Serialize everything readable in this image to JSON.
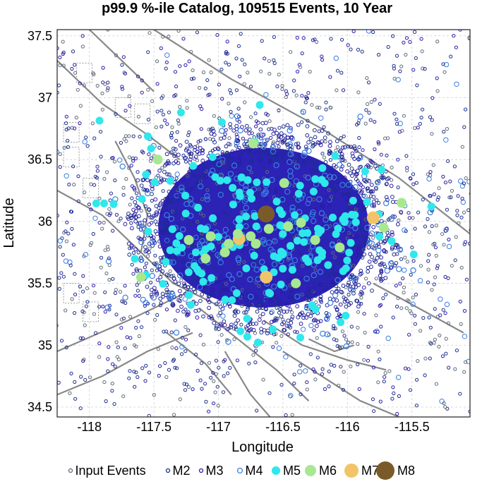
{
  "chart_data": {
    "type": "scatter",
    "title": "p99.9 %-ile Catalog, 109515 Events, 10 Year",
    "xlabel": "Longitude",
    "ylabel": "Latitude",
    "xlim": [
      -118.25,
      -115.05
    ],
    "ylim": [
      34.42,
      37.55
    ],
    "xticks": [
      -118,
      -117.5,
      -117,
      -116.5,
      -116,
      -115.5
    ],
    "yticks": [
      34.5,
      35,
      35.5,
      36,
      36.5,
      37,
      37.5
    ],
    "xtick_labels": [
      "-118",
      "-117.5",
      "-117",
      "-116.5",
      "-116",
      "-115.5"
    ],
    "ytick_labels": [
      "34.5",
      "35",
      "35.5",
      "36",
      "36.5",
      "37",
      "37.5"
    ],
    "grid": true,
    "legend_position": "bottom",
    "legend": [
      {
        "label": "Input Events",
        "color": "#5f6b7a",
        "filled": false
      },
      {
        "label": "M2",
        "color": "#1b2f8c",
        "filled": false
      },
      {
        "label": "M3",
        "color": "#2a1aa6",
        "filled": false
      },
      {
        "label": "M4",
        "color": "#3a7fe0",
        "filled": false
      },
      {
        "label": "M5",
        "color": "#2ee8ec",
        "filled": true
      },
      {
        "label": "M6",
        "color": "#a8e890",
        "filled": true
      },
      {
        "label": "M7",
        "color": "#f2c46a",
        "filled": true
      },
      {
        "label": "M8",
        "color": "#7b5a2a",
        "filled": true
      }
    ],
    "cluster": {
      "center": [
        -116.65,
        35.95
      ],
      "lon_radius": 0.95,
      "lat_radius": 0.75,
      "color": "#1a0fb0"
    },
    "large_events": [
      {
        "magnitude": "M8",
        "x": -116.63,
        "y": 36.06
      },
      {
        "magnitude": "M7",
        "x": -116.84,
        "y": 35.86
      },
      {
        "magnitude": "M7",
        "x": -116.63,
        "y": 35.55
      },
      {
        "magnitude": "M7",
        "x": -115.8,
        "y": 36.03
      },
      {
        "magnitude": "M6",
        "x": -117.47,
        "y": 36.5
      },
      {
        "magnitude": "M6",
        "x": -117.23,
        "y": 35.85
      },
      {
        "magnitude": "M6",
        "x": -117.06,
        "y": 35.88
      },
      {
        "magnitude": "M6",
        "x": -116.92,
        "y": 35.82
      },
      {
        "magnitude": "M6",
        "x": -116.85,
        "y": 35.9
      },
      {
        "magnitude": "M6",
        "x": -116.75,
        "y": 35.88
      },
      {
        "magnitude": "M6",
        "x": -116.61,
        "y": 35.94
      },
      {
        "magnitude": "M6",
        "x": -116.46,
        "y": 35.96
      },
      {
        "magnitude": "M6",
        "x": -116.36,
        "y": 35.99
      },
      {
        "magnitude": "M6",
        "x": -116.06,
        "y": 35.79
      },
      {
        "magnitude": "M6",
        "x": -115.72,
        "y": 35.95
      },
      {
        "magnitude": "M6",
        "x": -116.49,
        "y": 36.31
      },
      {
        "magnitude": "M6",
        "x": -117.6,
        "y": 35.55
      },
      {
        "magnitude": "M6",
        "x": -116.73,
        "y": 36.63
      },
      {
        "magnitude": "M6",
        "x": -116.4,
        "y": 35.5
      },
      {
        "magnitude": "M6",
        "x": -115.58,
        "y": 36.15
      },
      {
        "magnitude": "M6",
        "x": -116.71,
        "y": 35.82
      },
      {
        "magnitude": "M6",
        "x": -117.1,
        "y": 35.7
      },
      {
        "magnitude": "M6",
        "x": -116.95,
        "y": 35.75
      },
      {
        "magnitude": "M6",
        "x": -116.25,
        "y": 35.85
      }
    ]
  }
}
